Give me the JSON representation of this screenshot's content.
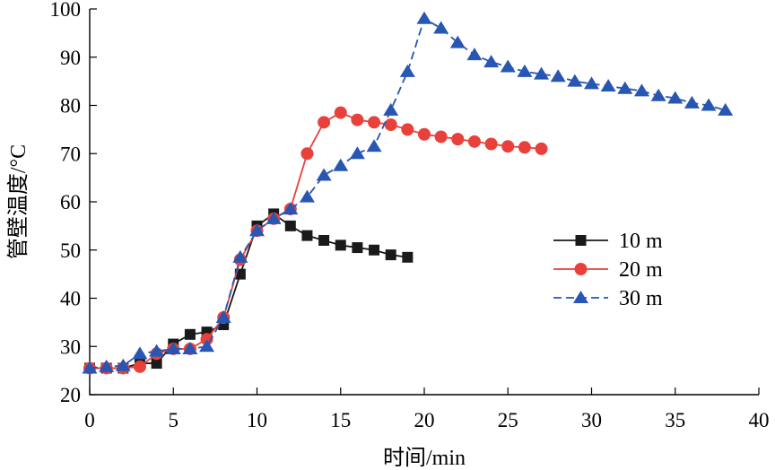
{
  "chart_data": {
    "type": "line",
    "xlabel": "时间/min",
    "ylabel": "管壁温度/°C",
    "xlim": [
      0,
      40
    ],
    "ylim": [
      20,
      100
    ],
    "x_ticks": [
      0,
      5,
      10,
      15,
      20,
      25,
      30,
      35,
      40
    ],
    "y_ticks": [
      20,
      30,
      40,
      50,
      60,
      70,
      80,
      90,
      100
    ],
    "grid": false,
    "legend_position": "right",
    "series": [
      {
        "name": "10 m",
        "color": "#1a1a1a",
        "marker": "square",
        "dash": "solid",
        "x": [
          0,
          1,
          2,
          3,
          4,
          5,
          6,
          7,
          8,
          9,
          10,
          11,
          12,
          13,
          14,
          15,
          16,
          17,
          18,
          19
        ],
        "y": [
          25.5,
          25.5,
          25.5,
          26.5,
          26.5,
          30.5,
          32.5,
          33.0,
          34.5,
          45.0,
          55.0,
          57.5,
          55.0,
          53.0,
          52.0,
          51.0,
          50.5,
          50.0,
          49.0,
          48.5
        ]
      },
      {
        "name": "20 m",
        "color": "#e8413c",
        "marker": "circle",
        "dash": "solid",
        "x": [
          0,
          1,
          2,
          3,
          4,
          5,
          6,
          7,
          8,
          9,
          10,
          11,
          12,
          13,
          14,
          15,
          16,
          17,
          18,
          19,
          20,
          21,
          22,
          23,
          24,
          25,
          26,
          27
        ],
        "y": [
          25.5,
          25.5,
          25.5,
          25.8,
          28.5,
          29.5,
          29.5,
          31.5,
          36.0,
          48.0,
          54.0,
          56.5,
          58.5,
          70.0,
          76.5,
          78.5,
          77.0,
          76.5,
          76.0,
          75.0,
          74.0,
          73.5,
          73.0,
          72.5,
          72.0,
          71.5,
          71.3,
          71.0
        ]
      },
      {
        "name": "30 m",
        "color": "#2756b3",
        "marker": "triangle",
        "dash": "dashed",
        "x": [
          0,
          1,
          2,
          3,
          4,
          5,
          6,
          7,
          8,
          9,
          10,
          11,
          12,
          13,
          14,
          15,
          16,
          17,
          18,
          19,
          20,
          21,
          22,
          23,
          24,
          25,
          26,
          27,
          28,
          29,
          30,
          31,
          32,
          33,
          34,
          35,
          36,
          37,
          38
        ],
        "y": [
          25.5,
          25.8,
          26.0,
          28.5,
          29.0,
          29.5,
          29.5,
          30.0,
          36.0,
          48.5,
          54.0,
          56.5,
          58.5,
          61.0,
          65.5,
          67.5,
          70.0,
          71.5,
          79.0,
          87.0,
          98.0,
          96.0,
          93.0,
          90.5,
          89.0,
          88.0,
          87.0,
          86.5,
          86.0,
          85.0,
          84.5,
          84.0,
          83.5,
          83.0,
          82.0,
          81.5,
          80.5,
          80.0,
          79.0
        ]
      }
    ]
  }
}
